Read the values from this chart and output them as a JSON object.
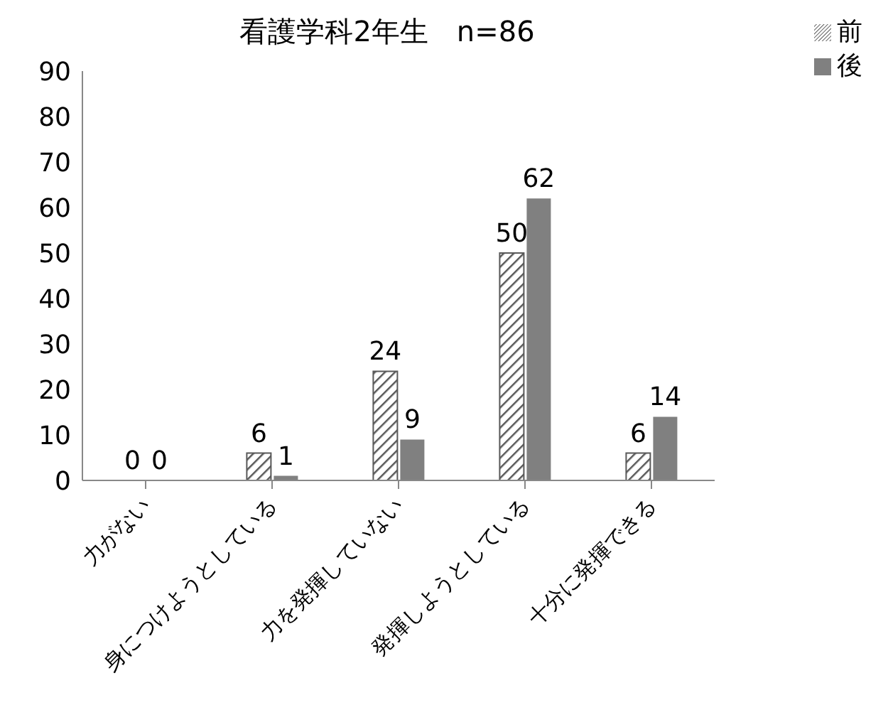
{
  "chart_data": {
    "type": "bar",
    "title": "看護学科2年生　n=86",
    "categories": [
      "力がない",
      "身につけようとしている",
      "力を発揮していない",
      "発揮しようとしている",
      "十分に発揮できる"
    ],
    "series": [
      {
        "name": "前",
        "color": "#595959",
        "values": [
          0,
          6,
          24,
          50,
          6
        ]
      },
      {
        "name": "後",
        "color": "#808080",
        "values": [
          0,
          1,
          9,
          62,
          14
        ]
      }
    ],
    "ylim": [
      0,
      90
    ],
    "yticks": [
      0,
      10,
      20,
      30,
      40,
      50,
      60,
      70,
      80,
      90
    ],
    "grid": false,
    "legend": "top right",
    "data_labels": true
  }
}
